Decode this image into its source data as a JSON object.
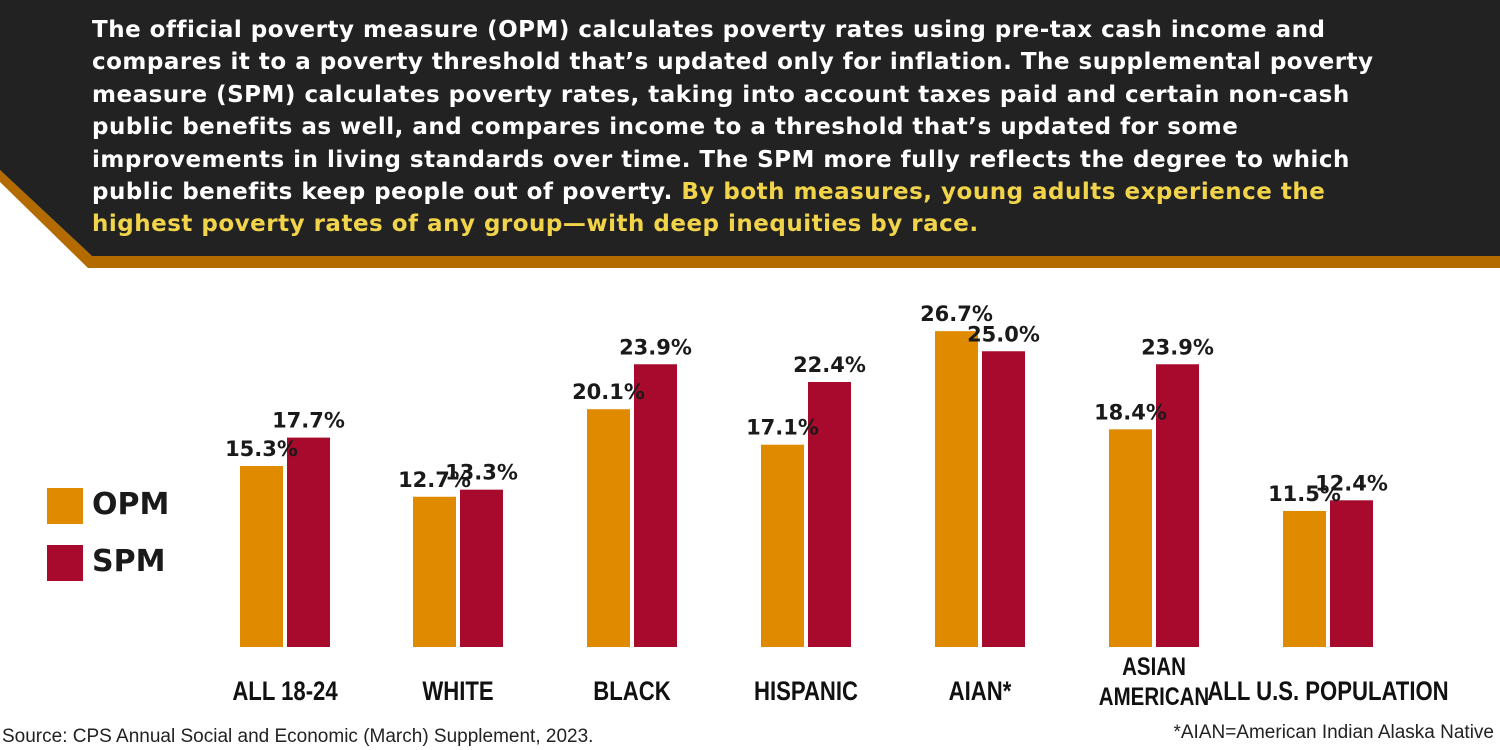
{
  "header": {
    "text": "The official poverty measure (OPM) calculates poverty rates using pre-tax cash income and compares it to a poverty threshold that’s updated only for inflation. The supplemental poverty measure (SPM) calculates poverty rates, taking into account taxes paid and certain non-cash public benefits as well, and compares income to a threshold that’s updated for some improvements in living standards over time. The SPM more fully reflects the degree to which public benefits keep people out of poverty.",
    "highlight": "By both measures, young adults experience the highest poverty rates of any group—with deep inequities by race."
  },
  "colors": {
    "header_bg": "#222222",
    "header_accent": "#b36b00",
    "highlight": "#f2d44a",
    "opm": "#e08a00",
    "spm": "#a70a2d"
  },
  "chart_data": {
    "type": "bar",
    "categories": [
      "ALL 18-24",
      "WHITE",
      "BLACK",
      "HISPANIC",
      "AIAN*",
      "ASIAN AMERICAN",
      "ALL U.S. POPULATION"
    ],
    "series": [
      {
        "name": "OPM",
        "values": [
          15.3,
          12.7,
          20.1,
          17.1,
          26.7,
          18.4,
          11.5
        ],
        "labels": [
          "15.3%",
          "12.7%",
          "20.1%",
          "17.1%",
          "26.7%",
          "18.4%",
          "11.5%"
        ]
      },
      {
        "name": "SPM",
        "values": [
          17.7,
          13.3,
          23.9,
          22.4,
          25.0,
          23.9,
          12.4
        ],
        "labels": [
          "17.7%",
          "13.3%",
          "23.9%",
          "22.4%",
          "25.0%",
          "23.9%",
          "12.4%"
        ]
      }
    ],
    "title": "",
    "xlabel": "",
    "ylabel": "",
    "ylim": [
      0,
      30
    ],
    "grid": false,
    "legend_position": "left"
  },
  "legend": {
    "opm_label": "OPM",
    "spm_label": "SPM"
  },
  "footer": {
    "source": "Source: CPS Annual Social and Economic (March) Supplement, 2023.",
    "footnote": "*AIAN=American Indian Alaska Native"
  }
}
